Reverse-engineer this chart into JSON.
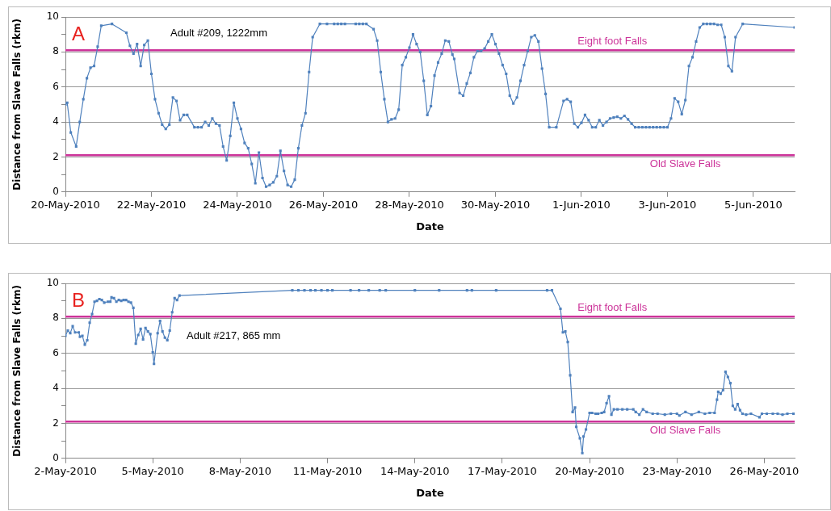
{
  "chart_data": [
    {
      "type": "line",
      "annotations": [
        "A",
        "Adult #209, 1222mm"
      ],
      "xlabel": "Date",
      "ylabel": "Distance from Slave Falls (rkm)",
      "color": "#4f81bd",
      "marker": "square",
      "line_style": "solid",
      "grid": "y",
      "legend": false,
      "xlim": [
        "2010-05-20",
        "2010-06-05T23:00"
      ],
      "xticks": [
        {
          "value": "2010-05-20",
          "label": "20-May-2010"
        },
        {
          "value": "2010-05-22",
          "label": "22-May-2010"
        },
        {
          "value": "2010-05-24",
          "label": "24-May-2010"
        },
        {
          "value": "2010-05-26",
          "label": "26-May-2010"
        },
        {
          "value": "2010-05-28",
          "label": "28-May-2010"
        },
        {
          "value": "2010-05-30",
          "label": "30-May-2010"
        },
        {
          "value": "2010-06-01",
          "label": "1-Jun-2010"
        },
        {
          "value": "2010-06-03",
          "label": "3-Jun-2010"
        },
        {
          "value": "2010-06-05",
          "label": "5-Jun-2010"
        }
      ],
      "ylim": [
        0,
        10
      ],
      "yticks": [
        0,
        {
          "value": 1,
          "label": null
        },
        2,
        {
          "value": 3,
          "label": null
        },
        4,
        {
          "value": 5,
          "label": null
        },
        6,
        {
          "value": 7,
          "label": null
        },
        8,
        {
          "value": 9,
          "label": null
        },
        10
      ],
      "ref_lines": [
        {
          "axis": "y",
          "value": 8.1,
          "label": "Eight foot Falls",
          "color": "#cc3399"
        },
        {
          "axis": "y",
          "value": 2.1,
          "label": "Old Slave Falls",
          "color": "#cc3399"
        }
      ],
      "x": [
        "2010-05-20T00:00",
        "2010-05-20T01:00",
        "2010-05-20T03:00",
        "2010-05-20T06:00",
        "2010-05-20T08:00",
        "2010-05-20T10:00",
        "2010-05-20T12:00",
        "2010-05-20T14:00",
        "2010-05-20T16:00",
        "2010-05-20T18:00",
        "2010-05-20T20:00",
        "2010-05-21T02:00",
        "2010-05-21T10:00",
        "2010-05-21T12:00",
        "2010-05-21T14:00",
        "2010-05-21T16:00",
        "2010-05-21T18:00",
        "2010-05-21T20:00",
        "2010-05-21T22:00",
        "2010-05-22T00:00",
        "2010-05-22T02:00",
        "2010-05-22T04:00",
        "2010-05-22T06:00",
        "2010-05-22T08:00",
        "2010-05-22T10:00",
        "2010-05-22T12:00",
        "2010-05-22T14:00",
        "2010-05-22T16:00",
        "2010-05-22T18:00",
        "2010-05-22T20:00",
        "2010-05-23T00:00",
        "2010-05-23T02:00",
        "2010-05-23T04:00",
        "2010-05-23T06:00",
        "2010-05-23T08:00",
        "2010-05-23T10:00",
        "2010-05-23T12:00",
        "2010-05-23T14:00",
        "2010-05-23T16:00",
        "2010-05-23T18:00",
        "2010-05-23T20:00",
        "2010-05-23T22:00",
        "2010-05-24T00:00",
        "2010-05-24T02:00",
        "2010-05-24T04:00",
        "2010-05-24T06:00",
        "2010-05-24T08:00",
        "2010-05-24T10:00",
        "2010-05-24T12:00",
        "2010-05-24T14:00",
        "2010-05-24T16:00",
        "2010-05-24T18:00",
        "2010-05-24T20:00",
        "2010-05-24T22:00",
        "2010-05-25T00:00",
        "2010-05-25T02:00",
        "2010-05-25T04:00",
        "2010-05-25T06:00",
        "2010-05-25T08:00",
        "2010-05-25T10:00",
        "2010-05-25T12:00",
        "2010-05-25T14:00",
        "2010-05-25T16:00",
        "2010-05-25T18:00",
        "2010-05-25T22:00",
        "2010-05-26T02:00",
        "2010-05-26T06:00",
        "2010-05-26T08:00",
        "2010-05-26T10:00",
        "2010-05-26T12:00",
        "2010-05-26T18:00",
        "2010-05-26T20:00",
        "2010-05-26T22:00",
        "2010-05-27T00:00",
        "2010-05-27T04:00",
        "2010-05-27T06:00",
        "2010-05-27T08:00",
        "2010-05-27T10:00",
        "2010-05-27T12:00",
        "2010-05-27T14:00",
        "2010-05-27T16:00",
        "2010-05-27T18:00",
        "2010-05-27T20:00",
        "2010-05-27T22:00",
        "2010-05-28T00:00",
        "2010-05-28T02:00",
        "2010-05-28T04:00",
        "2010-05-28T06:00",
        "2010-05-28T08:00",
        "2010-05-28T10:00",
        "2010-05-28T12:00",
        "2010-05-28T14:00",
        "2010-05-28T16:00",
        "2010-05-28T18:00",
        "2010-05-28T20:00",
        "2010-05-28T22:00",
        "2010-05-29T00:00",
        "2010-05-29T01:00",
        "2010-05-29T04:00",
        "2010-05-29T06:00",
        "2010-05-29T08:00",
        "2010-05-29T10:00",
        "2010-05-29T12:00",
        "2010-05-29T14:00",
        "2010-05-29T16:00",
        "2010-05-29T18:00",
        "2010-05-29T20:00",
        "2010-05-29T22:00",
        "2010-05-30T00:00",
        "2010-05-30T02:00",
        "2010-05-30T04:00",
        "2010-05-30T06:00",
        "2010-05-30T08:00",
        "2010-05-30T10:00",
        "2010-05-30T12:00",
        "2010-05-30T14:00",
        "2010-05-30T16:00",
        "2010-05-30T18:00",
        "2010-05-30T20:00",
        "2010-05-30T22:00",
        "2010-05-31T00:00",
        "2010-05-31T02:00",
        "2010-05-31T04:00",
        "2010-05-31T06:00",
        "2010-05-31T10:00",
        "2010-05-31T14:00",
        "2010-05-31T16:00",
        "2010-05-31T18:00",
        "2010-05-31T20:00",
        "2010-05-31T22:00",
        "2010-06-01T00:00",
        "2010-06-01T02:00",
        "2010-06-01T04:00",
        "2010-06-01T06:00",
        "2010-06-01T08:00",
        "2010-06-01T10:00",
        "2010-06-01T12:00",
        "2010-06-01T14:00",
        "2010-06-01T16:00",
        "2010-06-01T18:00",
        "2010-06-01T20:00",
        "2010-06-01T22:00",
        "2010-06-02T00:00",
        "2010-06-02T02:00",
        "2010-06-02T04:00",
        "2010-06-02T06:00",
        "2010-06-02T08:00",
        "2010-06-02T10:00",
        "2010-06-02T12:00",
        "2010-06-02T14:00",
        "2010-06-02T16:00",
        "2010-06-02T18:00",
        "2010-06-02T20:00",
        "2010-06-02T22:00",
        "2010-06-03T00:00",
        "2010-06-03T02:00",
        "2010-06-03T04:00",
        "2010-06-03T06:00",
        "2010-06-03T08:00",
        "2010-06-03T10:00",
        "2010-06-03T12:00",
        "2010-06-03T14:00",
        "2010-06-03T16:00",
        "2010-06-03T18:00",
        "2010-06-03T20:00",
        "2010-06-03T22:00",
        "2010-06-04T00:00",
        "2010-06-04T02:00",
        "2010-06-04T04:00",
        "2010-06-04T06:00",
        "2010-06-04T08:00",
        "2010-06-04T10:00",
        "2010-06-04T12:00",
        "2010-06-04T14:00",
        "2010-06-04T18:00",
        "2010-06-05T23:00"
      ],
      "values": [
        5.0,
        5.1,
        3.4,
        2.6,
        4.0,
        5.3,
        6.5,
        7.1,
        7.2,
        8.3,
        9.5,
        9.6,
        9.1,
        8.35,
        7.9,
        8.45,
        7.2,
        8.4,
        8.65,
        6.75,
        5.3,
        4.5,
        3.85,
        3.6,
        3.85,
        5.4,
        5.2,
        4.1,
        4.4,
        4.4,
        3.7,
        3.7,
        3.7,
        4.0,
        3.8,
        4.2,
        3.9,
        3.8,
        2.6,
        1.8,
        3.2,
        5.1,
        4.2,
        3.6,
        2.8,
        2.5,
        1.6,
        0.5,
        2.25,
        0.8,
        0.3,
        0.4,
        0.55,
        0.9,
        2.35,
        1.2,
        0.4,
        0.3,
        0.7,
        2.5,
        3.8,
        4.5,
        6.85,
        8.85,
        9.6,
        9.6,
        9.6,
        9.6,
        9.6,
        9.6,
        9.6,
        9.6,
        9.6,
        9.6,
        9.3,
        8.65,
        6.85,
        5.3,
        4.0,
        4.15,
        4.2,
        4.7,
        7.25,
        7.7,
        8.25,
        9.0,
        8.45,
        8.0,
        6.35,
        4.4,
        4.9,
        6.65,
        7.4,
        7.9,
        8.65,
        8.6,
        7.85,
        7.6,
        5.65,
        5.5,
        6.2,
        6.8,
        7.7,
        8.05,
        8.05,
        8.2,
        8.6,
        9.0,
        8.45,
        7.9,
        7.25,
        6.75,
        5.5,
        5.05,
        5.4,
        6.35,
        7.25,
        8.05,
        8.85,
        8.95,
        8.6,
        7.05,
        5.6,
        3.7,
        3.7,
        5.2,
        5.3,
        5.15,
        3.9,
        3.7,
        3.95,
        4.4,
        4.1,
        3.7,
        3.7,
        4.1,
        3.8,
        4.0,
        4.2,
        4.25,
        4.3,
        4.2,
        4.35,
        4.15,
        3.9,
        3.7,
        3.7,
        3.7,
        3.7,
        3.7,
        3.7,
        3.7,
        3.7,
        3.7,
        3.7,
        4.2,
        5.35,
        5.15,
        4.45,
        5.25,
        7.2,
        7.7,
        8.6,
        9.4,
        9.6,
        9.6,
        9.6,
        9.6,
        9.55,
        9.55,
        8.85,
        7.2,
        6.9,
        8.85,
        9.6,
        9.4
      ]
    },
    {
      "type": "line",
      "annotations": [
        "B",
        "Adult #217, 865 mm"
      ],
      "xlabel": "Date",
      "ylabel": "Distance from Slave Falls (rkm)",
      "color": "#4f81bd",
      "marker": "square",
      "line_style": "solid",
      "grid": "y",
      "legend": false,
      "xlim": [
        "2010-05-02",
        "2010-05-27T01:00"
      ],
      "xticks": [
        {
          "value": "2010-05-02",
          "label": "2-May-2010"
        },
        {
          "value": "2010-05-05",
          "label": "5-May-2010"
        },
        {
          "value": "2010-05-08",
          "label": "8-May-2010"
        },
        {
          "value": "2010-05-11",
          "label": "11-May-2010"
        },
        {
          "value": "2010-05-14",
          "label": "14-May-2010"
        },
        {
          "value": "2010-05-17",
          "label": "17-May-2010"
        },
        {
          "value": "2010-05-20",
          "label": "20-May-2010"
        },
        {
          "value": "2010-05-23",
          "label": "23-May-2010"
        },
        {
          "value": "2010-05-26",
          "label": "26-May-2010"
        }
      ],
      "ylim": [
        0,
        10
      ],
      "yticks": [
        0,
        {
          "value": 1,
          "label": null
        },
        2,
        {
          "value": 3,
          "label": null
        },
        4,
        {
          "value": 5,
          "label": null
        },
        6,
        {
          "value": 7,
          "label": null
        },
        8,
        {
          "value": 9,
          "label": null
        },
        10
      ],
      "ref_lines": [
        {
          "axis": "y",
          "value": 8.1,
          "label": "Eight foot Falls",
          "color": "#cc3399"
        },
        {
          "axis": "y",
          "value": 2.1,
          "label": "Old Slave Falls",
          "color": "#cc3399"
        }
      ],
      "x": [
        "2010-05-02T00:00",
        "2010-05-02T02:00",
        "2010-05-02T04:00",
        "2010-05-02T06:00",
        "2010-05-02T08:00",
        "2010-05-02T11:00",
        "2010-05-02T12:00",
        "2010-05-02T14:00",
        "2010-05-02T16:00",
        "2010-05-02T18:00",
        "2010-05-02T20:00",
        "2010-05-02T22:00",
        "2010-05-03T00:00",
        "2010-05-03T02:00",
        "2010-05-03T04:00",
        "2010-05-03T06:00",
        "2010-05-03T08:00",
        "2010-05-03T11:00",
        "2010-05-03T13:00",
        "2010-05-03T14:00",
        "2010-05-03T16:00",
        "2010-05-03T18:00",
        "2010-05-03T20:00",
        "2010-05-03T22:00",
        "2010-05-04T00:00",
        "2010-05-04T02:00",
        "2010-05-04T04:00",
        "2010-05-04T06:00",
        "2010-05-04T08:00",
        "2010-05-04T10:00",
        "2010-05-04T12:00",
        "2010-05-04T14:00",
        "2010-05-04T16:00",
        "2010-05-04T18:00",
        "2010-05-04T20:00",
        "2010-05-04T22:00",
        "2010-05-05T00:00",
        "2010-05-05T01:00",
        "2010-05-05T04:00",
        "2010-05-05T06:00",
        "2010-05-05T08:00",
        "2010-05-05T10:00",
        "2010-05-05T12:00",
        "2010-05-05T14:00",
        "2010-05-05T16:00",
        "2010-05-05T18:00",
        "2010-05-05T20:00",
        "2010-05-05T22:00",
        "2010-05-09T19:00",
        "2010-05-10T00:00",
        "2010-05-10T05:00",
        "2010-05-10T10:00",
        "2010-05-10T14:00",
        "2010-05-10T19:00",
        "2010-05-11T00:00",
        "2010-05-11T04:00",
        "2010-05-11T19:00",
        "2010-05-12T02:00",
        "2010-05-12T10:00",
        "2010-05-12T19:00",
        "2010-05-13T00:00",
        "2010-05-14T00:00",
        "2010-05-14T20:00",
        "2010-05-15T19:00",
        "2010-05-15T23:00",
        "2010-05-16T19:00",
        "2010-05-18T13:00",
        "2010-05-18T17:00",
        "2010-05-19T00:00",
        "2010-05-19T02:00",
        "2010-05-19T04:00",
        "2010-05-19T06:00",
        "2010-05-19T08:00",
        "2010-05-19T10:00",
        "2010-05-19T12:00",
        "2010-05-19T13:00",
        "2010-05-19T16:00",
        "2010-05-19T18:00",
        "2010-05-19T19:00",
        "2010-05-19T21:00",
        "2010-05-20T00:00",
        "2010-05-20T02:00",
        "2010-05-20T05:00",
        "2010-05-20T07:00",
        "2010-05-20T10:00",
        "2010-05-20T12:00",
        "2010-05-20T14:00",
        "2010-05-20T16:00",
        "2010-05-20T18:00",
        "2010-05-20T20:00",
        "2010-05-20T23:00",
        "2010-05-21T03:00",
        "2010-05-21T07:00",
        "2010-05-21T12:00",
        "2010-05-21T14:00",
        "2010-05-21T17:00",
        "2010-05-21T20:00",
        "2010-05-21T23:00",
        "2010-05-22T04:00",
        "2010-05-22T08:00",
        "2010-05-22T14:00",
        "2010-05-22T19:00",
        "2010-05-23T00:00",
        "2010-05-23T02:00",
        "2010-05-23T07:00",
        "2010-05-23T12:00",
        "2010-05-23T18:00",
        "2010-05-23T23:00",
        "2010-05-24T03:00",
        "2010-05-24T07:00",
        "2010-05-24T09:00",
        "2010-05-24T10:00",
        "2010-05-24T12:00",
        "2010-05-24T14:00",
        "2010-05-24T16:00",
        "2010-05-24T18:00",
        "2010-05-24T20:00",
        "2010-05-24T22:00",
        "2010-05-25T00:00",
        "2010-05-25T02:00",
        "2010-05-25T04:00",
        "2010-05-25T06:00",
        "2010-05-25T09:00",
        "2010-05-25T13:00",
        "2010-05-25T20:00",
        "2010-05-25T22:00",
        "2010-05-26T02:00",
        "2010-05-26T07:00",
        "2010-05-26T11:00",
        "2010-05-26T15:00",
        "2010-05-26T19:00",
        "2010-05-27T00:00"
      ],
      "values": [
        7.0,
        7.3,
        7.15,
        7.55,
        7.2,
        7.2,
        6.95,
        7.0,
        6.5,
        6.75,
        7.75,
        8.25,
        8.95,
        9.0,
        9.1,
        9.05,
        8.9,
        8.95,
        8.95,
        9.2,
        9.15,
        8.95,
        9.05,
        9.0,
        9.05,
        9.05,
        8.95,
        8.9,
        8.6,
        6.55,
        7.05,
        7.4,
        6.8,
        7.45,
        7.25,
        7.1,
        6.05,
        5.4,
        7.15,
        7.85,
        7.25,
        6.9,
        6.75,
        7.3,
        8.35,
        9.15,
        9.05,
        9.3,
        9.6,
        9.6,
        9.6,
        9.6,
        9.6,
        9.6,
        9.6,
        9.6,
        9.6,
        9.6,
        9.6,
        9.6,
        9.6,
        9.6,
        9.6,
        9.6,
        9.6,
        9.6,
        9.6,
        9.6,
        8.55,
        7.2,
        7.25,
        6.65,
        4.75,
        2.65,
        2.9,
        1.8,
        1.15,
        0.3,
        1.25,
        1.65,
        2.6,
        2.6,
        2.55,
        2.55,
        2.6,
        2.65,
        3.15,
        3.55,
        2.5,
        2.8,
        2.8,
        2.8,
        2.8,
        2.8,
        2.65,
        2.5,
        2.8,
        2.65,
        2.55,
        2.55,
        2.5,
        2.55,
        2.55,
        2.45,
        2.65,
        2.5,
        2.65,
        2.55,
        2.6,
        2.6,
        3.35,
        3.8,
        3.7,
        3.9,
        4.95,
        4.65,
        4.3,
        3.0,
        2.8,
        3.1,
        2.75,
        2.55,
        2.5,
        2.55,
        2.35,
        2.55,
        2.55,
        2.55,
        2.55,
        2.5,
        2.55,
        2.55
      ]
    }
  ]
}
